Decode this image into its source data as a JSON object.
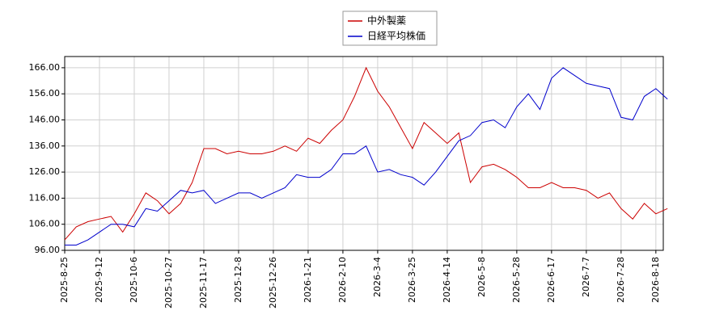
{
  "chart_data": {
    "type": "line",
    "categories": [
      "2025-8-25",
      null,
      null,
      "2025-9-12",
      null,
      null,
      "2025-10-6",
      null,
      null,
      "2025-10-27",
      null,
      null,
      "2025-11-17",
      null,
      null,
      "2025-12-8",
      null,
      null,
      "2025-12-26",
      null,
      null,
      "2026-1-21",
      null,
      null,
      "2026-2-10",
      null,
      null,
      "2026-3-4",
      null,
      null,
      "2026-3-25",
      null,
      null,
      "2026-4-14",
      null,
      null,
      "2026-5-8",
      null,
      null,
      "2026-5-28",
      null,
      null,
      "2026-6-17",
      null,
      null,
      "2026-7-7",
      null,
      null,
      "2026-7-28",
      null,
      null,
      "2026-8-18",
      null
    ],
    "series": [
      {
        "name": "中外製薬",
        "color": "#cc0000",
        "values": [
          100,
          105,
          107,
          108,
          109,
          103,
          110,
          118,
          115,
          110,
          114,
          122,
          135,
          135,
          133,
          134,
          133,
          133,
          134,
          136,
          134,
          139,
          137,
          142,
          146,
          155,
          166,
          157,
          151,
          143,
          135,
          145,
          141,
          137,
          141,
          122,
          128,
          129,
          127,
          124,
          120,
          120,
          122,
          120,
          120,
          119,
          116,
          118,
          112,
          108,
          114,
          110,
          112
        ]
      },
      {
        "name": "日経平均株価",
        "color": "#0000cc",
        "values": [
          98,
          98,
          100,
          103,
          106,
          106,
          105,
          112,
          111,
          115,
          119,
          118,
          119,
          114,
          116,
          118,
          118,
          116,
          118,
          120,
          125,
          124,
          124,
          127,
          133,
          133,
          136,
          126,
          127,
          125,
          124,
          121,
          126,
          132,
          138,
          140,
          145,
          146,
          143,
          151,
          156,
          150,
          162,
          166,
          163,
          160,
          159,
          158,
          147,
          146,
          155,
          158,
          154
        ]
      }
    ],
    "ylim": [
      96,
      170.3
    ],
    "yticks": [
      {
        "value": 96,
        "label": "96.00"
      },
      {
        "value": 106,
        "label": "106.00"
      },
      {
        "value": 116,
        "label": "116.00"
      },
      {
        "value": 126,
        "label": "126.00"
      },
      {
        "value": 136,
        "label": "136.00"
      },
      {
        "value": 146,
        "label": "146.00"
      },
      {
        "value": 156,
        "label": "156.00"
      },
      {
        "value": 166,
        "label": "166.00"
      }
    ],
    "grid": true
  }
}
